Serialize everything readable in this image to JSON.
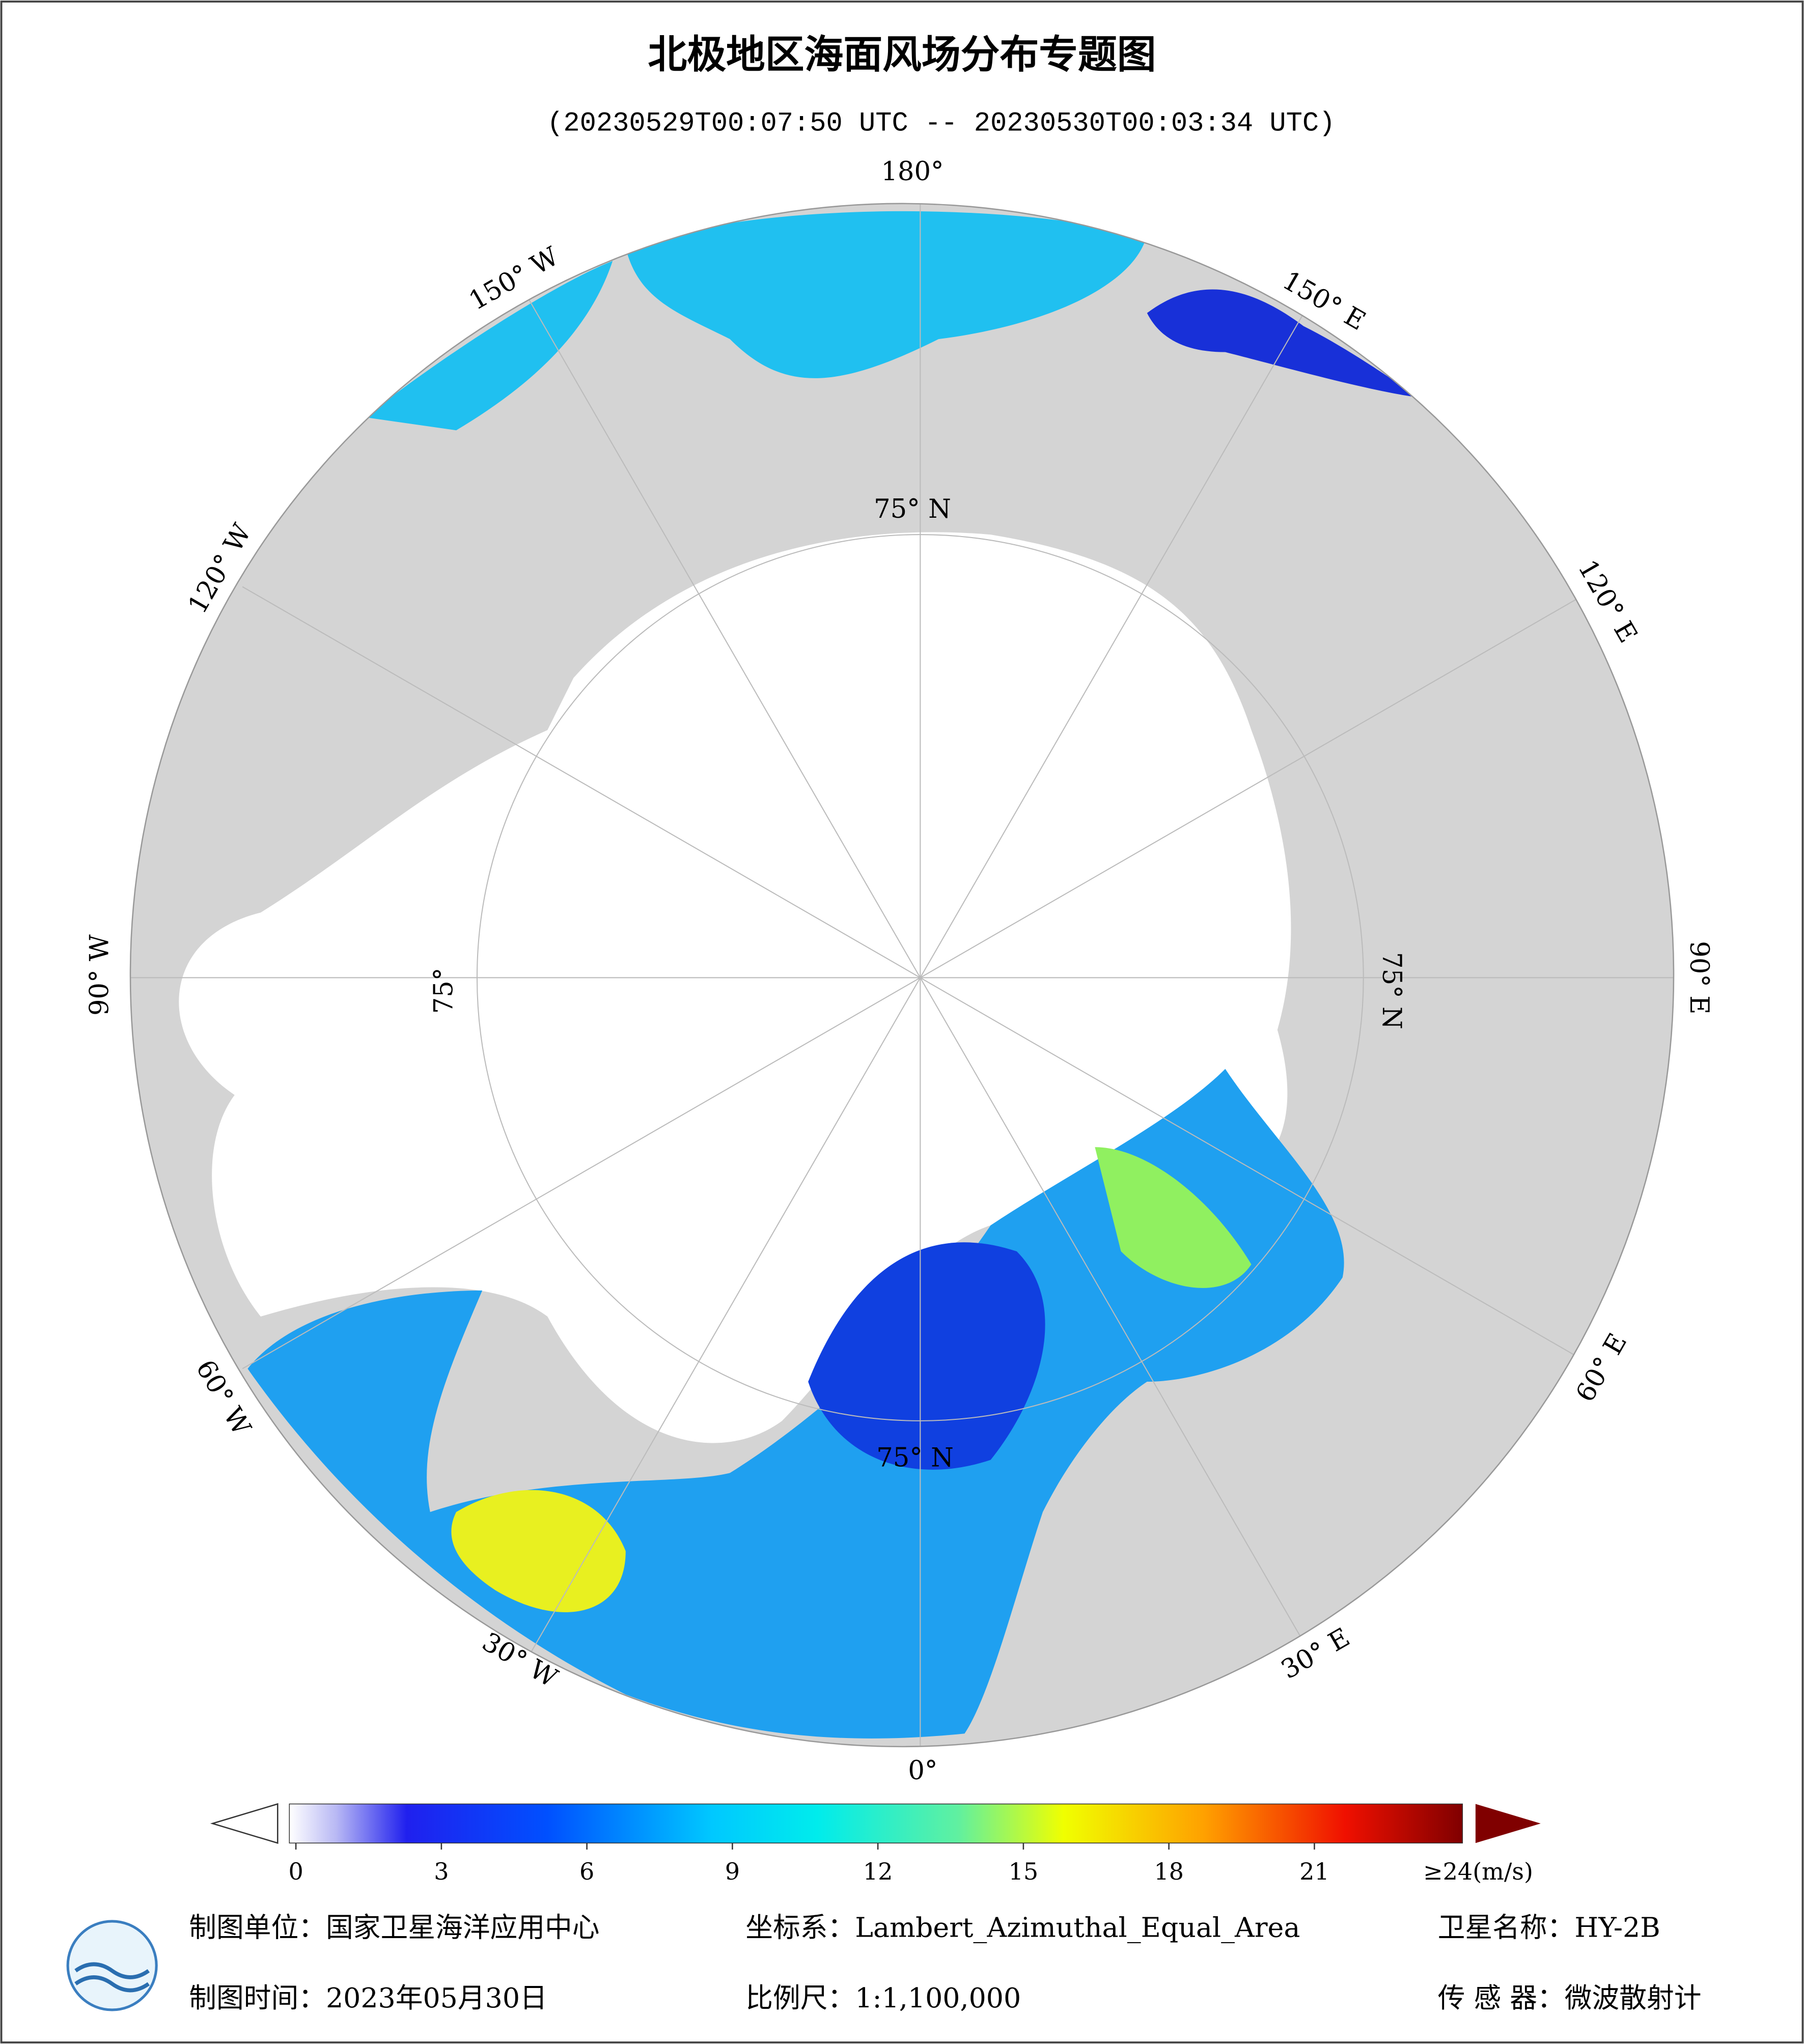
{
  "header": {
    "title": "北极地区海面风场分布专题图",
    "subtitle": "(20230529T00:07:50 UTC -- 20230530T00:03:34 UTC)"
  },
  "map": {
    "longitude_labels": [
      "180°",
      "150° W",
      "150° E",
      "120° W",
      "120° E",
      "90° W",
      "90° E",
      "60° W",
      "60° E",
      "30° W",
      "30° E",
      "0°"
    ],
    "latitude_labels": [
      "75° N",
      "75° N",
      "75° N",
      "75°"
    ]
  },
  "colorbar": {
    "range": [
      0,
      24
    ],
    "ticks": [
      0,
      3,
      6,
      9,
      12,
      15,
      18,
      21
    ],
    "max_label": "≥24(m/s)"
  },
  "footer": {
    "unit": "制图单位：国家卫星海洋应用中心",
    "coordinate_system": "坐标系：Lambert_Azimuthal_Equal_Area",
    "satellite": "卫星名称：HY-2B",
    "date": "制图时间：2023年05月30日",
    "scale": "比例尺：1:1,100,000",
    "sensor": "传 感 器：微波散射计"
  }
}
